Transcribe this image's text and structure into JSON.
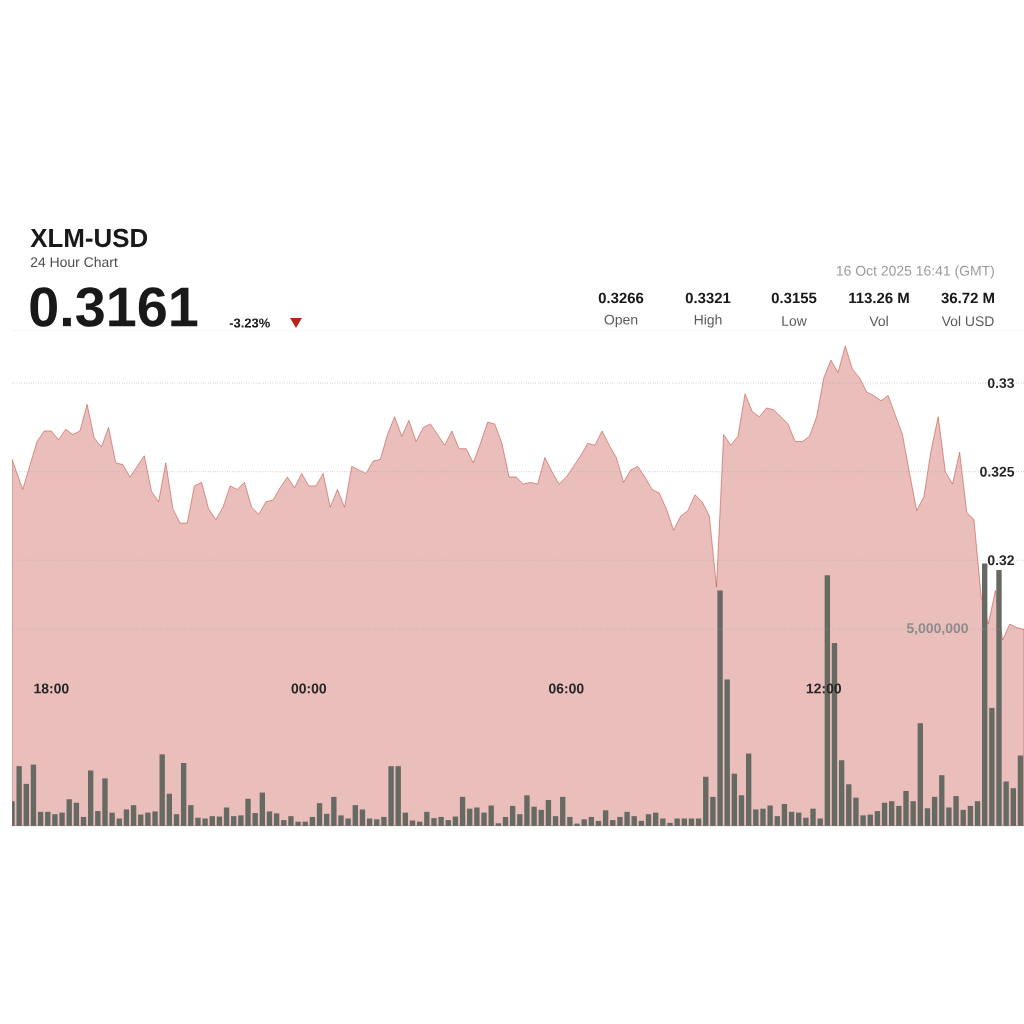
{
  "chart_data": {
    "type": "area",
    "title": "XLM-USD",
    "subtitle": "24 Hour Chart",
    "annotations": [
      "0.3161",
      "-3.23%",
      "0.3266",
      "Open",
      "0.3321",
      "High",
      "0.3155",
      "Low",
      "113.26 M",
      "Vol",
      "36.72 M",
      "Vol USD",
      "16 Oct 2025 16:41 (GMT)"
    ],
    "xlim": [
      "2025-10-15T17:05",
      "2025-10-16T16:40"
    ],
    "xticks": [
      {
        "value": "2025-10-15T18:00",
        "label": "18:00"
      },
      {
        "value": "2025-10-16T00:00",
        "label": "00:00"
      },
      {
        "value": "2025-10-16T06:00",
        "label": "06:00"
      },
      {
        "value": "2025-10-16T12:00",
        "label": "12:00"
      }
    ],
    "ylim": [
      0.305,
      0.333
    ],
    "yticks": [
      0.32,
      0.325,
      0.33
    ],
    "y2lim": [
      0,
      12600000
    ],
    "y2ticks": [
      {
        "value": 0,
        "label": null
      },
      {
        "value": 5000000,
        "label": "5,000,000"
      }
    ],
    "grid": "y",
    "series": [
      {
        "color": "#b5261c",
        "x": [
          "2025-10-15T17:05",
          "2025-10-15T17:20",
          "2025-10-15T17:40",
          "2025-10-15T17:50",
          "2025-10-15T18:00",
          "2025-10-15T18:10",
          "2025-10-15T18:20",
          "2025-10-15T18:30",
          "2025-10-15T18:40",
          "2025-10-15T18:50",
          "2025-10-15T19:00",
          "2025-10-15T19:10",
          "2025-10-15T19:20",
          "2025-10-15T19:30",
          "2025-10-15T19:40",
          "2025-10-15T19:50",
          "2025-10-15T20:10",
          "2025-10-15T20:20",
          "2025-10-15T20:30",
          "2025-10-15T20:40",
          "2025-10-15T20:50",
          "2025-10-15T21:00",
          "2025-10-15T21:10",
          "2025-10-15T21:20",
          "2025-10-15T21:30",
          "2025-10-15T21:40",
          "2025-10-15T21:50",
          "2025-10-15T22:00",
          "2025-10-15T22:10",
          "2025-10-15T22:20",
          "2025-10-15T22:30",
          "2025-10-15T22:40",
          "2025-10-15T22:50",
          "2025-10-15T23:00",
          "2025-10-15T23:10",
          "2025-10-15T23:20",
          "2025-10-15T23:30",
          "2025-10-15T23:40",
          "2025-10-15T23:50",
          "2025-10-16T00:00",
          "2025-10-16T00:10",
          "2025-10-16T00:20",
          "2025-10-16T00:30",
          "2025-10-16T00:40",
          "2025-10-16T00:50",
          "2025-10-16T01:00",
          "2025-10-16T01:20",
          "2025-10-16T01:30",
          "2025-10-16T01:40",
          "2025-10-16T01:50",
          "2025-10-16T02:00",
          "2025-10-16T02:10",
          "2025-10-16T02:20",
          "2025-10-16T02:30",
          "2025-10-16T02:40",
          "2025-10-16T02:50",
          "2025-10-16T03:00",
          "2025-10-16T03:10",
          "2025-10-16T03:20",
          "2025-10-16T03:30",
          "2025-10-16T03:40",
          "2025-10-16T03:50",
          "2025-10-16T04:00",
          "2025-10-16T04:10",
          "2025-10-16T04:20",
          "2025-10-16T04:30",
          "2025-10-16T04:40",
          "2025-10-16T04:50",
          "2025-10-16T05:00",
          "2025-10-16T05:10",
          "2025-10-16T05:20",
          "2025-10-16T05:30",
          "2025-10-16T05:40",
          "2025-10-16T05:50",
          "2025-10-16T06:00",
          "2025-10-16T06:10",
          "2025-10-16T06:20",
          "2025-10-16T06:30",
          "2025-10-16T06:40",
          "2025-10-16T06:50",
          "2025-10-16T07:00",
          "2025-10-16T07:10",
          "2025-10-16T07:20",
          "2025-10-16T07:30",
          "2025-10-16T07:40",
          "2025-10-16T07:50",
          "2025-10-16T08:00",
          "2025-10-16T08:10",
          "2025-10-16T08:20",
          "2025-10-16T08:30",
          "2025-10-16T08:40",
          "2025-10-16T08:50",
          "2025-10-16T09:00",
          "2025-10-16T09:10",
          "2025-10-16T09:20",
          "2025-10-16T09:30",
          "2025-10-16T09:40",
          "2025-10-16T09:50",
          "2025-10-16T10:00",
          "2025-10-16T10:10",
          "2025-10-16T10:20",
          "2025-10-16T10:30",
          "2025-10-16T10:40",
          "2025-10-16T10:50",
          "2025-10-16T11:00",
          "2025-10-16T11:10",
          "2025-10-16T11:20",
          "2025-10-16T11:30",
          "2025-10-16T11:40",
          "2025-10-16T11:50",
          "2025-10-16T12:00",
          "2025-10-16T12:10",
          "2025-10-16T12:20",
          "2025-10-16T12:30",
          "2025-10-16T12:40",
          "2025-10-16T12:50",
          "2025-10-16T13:00",
          "2025-10-16T13:10",
          "2025-10-16T13:20",
          "2025-10-16T13:30",
          "2025-10-16T13:40",
          "2025-10-16T13:50",
          "2025-10-16T14:00",
          "2025-10-16T14:10",
          "2025-10-16T14:20",
          "2025-10-16T14:30",
          "2025-10-16T14:40",
          "2025-10-16T14:50",
          "2025-10-16T15:00",
          "2025-10-16T15:10",
          "2025-10-16T15:20",
          "2025-10-16T15:30",
          "2025-10-16T15:40",
          "2025-10-16T15:50",
          "2025-10-16T16:00",
          "2025-10-16T16:10",
          "2025-10-16T16:20",
          "2025-10-16T16:30",
          "2025-10-16T16:40"
        ],
        "values": [
          0.3257,
          0.324,
          0.3267,
          0.3273,
          0.3273,
          0.3268,
          0.3274,
          0.3271,
          0.3273,
          0.3288,
          0.3269,
          0.3264,
          0.3275,
          0.3255,
          0.3254,
          0.3247,
          0.3259,
          0.3239,
          0.3233,
          0.3255,
          0.3229,
          0.3221,
          0.3221,
          0.3242,
          0.3244,
          0.3229,
          0.3223,
          0.323,
          0.3242,
          0.324,
          0.3244,
          0.323,
          0.3226,
          0.3233,
          0.3234,
          0.3241,
          0.3247,
          0.3241,
          0.3249,
          0.3242,
          0.3242,
          0.3249,
          0.323,
          0.324,
          0.323,
          0.3253,
          0.3249,
          0.3256,
          0.3257,
          0.3271,
          0.3281,
          0.327,
          0.3279,
          0.3267,
          0.3275,
          0.3277,
          0.3271,
          0.3265,
          0.3273,
          0.3263,
          0.3263,
          0.3255,
          0.3266,
          0.3278,
          0.3277,
          0.3266,
          0.3247,
          0.3247,
          0.3243,
          0.3244,
          0.3243,
          0.3258,
          0.325,
          0.3243,
          0.3247,
          0.3253,
          0.3259,
          0.3266,
          0.3265,
          0.3273,
          0.3265,
          0.3258,
          0.3244,
          0.3251,
          0.3253,
          0.3247,
          0.324,
          0.3238,
          0.3229,
          0.3217,
          0.3225,
          0.3228,
          0.3237,
          0.3233,
          0.3225,
          0.3185,
          0.3271,
          0.3265,
          0.327,
          0.3294,
          0.3284,
          0.3281,
          0.3286,
          0.3285,
          0.3281,
          0.3277,
          0.3267,
          0.3267,
          0.327,
          0.3281,
          0.3303,
          0.3313,
          0.3306,
          0.3321,
          0.3308,
          0.3303,
          0.3295,
          0.3293,
          0.329,
          0.3293,
          0.3282,
          0.3271,
          0.3249,
          0.3228,
          0.3236,
          0.3262,
          0.3281,
          0.325,
          0.3243,
          0.3261,
          0.3227,
          0.3223,
          0.318,
          0.3164,
          0.3183,
          0.3155,
          0.3164,
          0.3162,
          0.3161
        ]
      },
      {
        "type": "bar",
        "axis": "y2",
        "color": "#676a63",
        "x": [
          "2025-10-15T17:05",
          "2025-10-15T17:15",
          "2025-10-15T17:25",
          "2025-10-15T17:35",
          "2025-10-15T17:45",
          "2025-10-15T17:55",
          "2025-10-15T18:05",
          "2025-10-15T18:15",
          "2025-10-15T18:25",
          "2025-10-15T18:35",
          "2025-10-15T18:45",
          "2025-10-15T18:55",
          "2025-10-15T19:05",
          "2025-10-15T19:15",
          "2025-10-15T19:25",
          "2025-10-15T19:35",
          "2025-10-15T19:45",
          "2025-10-15T19:55",
          "2025-10-15T20:05",
          "2025-10-15T20:15",
          "2025-10-15T20:25",
          "2025-10-15T20:35",
          "2025-10-15T20:45",
          "2025-10-15T20:55",
          "2025-10-15T21:05",
          "2025-10-15T21:15",
          "2025-10-15T21:25",
          "2025-10-15T21:35",
          "2025-10-15T21:45",
          "2025-10-15T21:55",
          "2025-10-15T22:05",
          "2025-10-15T22:15",
          "2025-10-15T22:25",
          "2025-10-15T22:35",
          "2025-10-15T22:45",
          "2025-10-15T22:55",
          "2025-10-15T23:05",
          "2025-10-15T23:15",
          "2025-10-15T23:25",
          "2025-10-15T23:35",
          "2025-10-15T23:45",
          "2025-10-15T23:55",
          "2025-10-16T00:05",
          "2025-10-16T00:15",
          "2025-10-16T00:25",
          "2025-10-16T00:35",
          "2025-10-16T00:45",
          "2025-10-16T00:55",
          "2025-10-16T01:05",
          "2025-10-16T01:15",
          "2025-10-16T01:25",
          "2025-10-16T01:35",
          "2025-10-16T01:45",
          "2025-10-16T01:55",
          "2025-10-16T02:05",
          "2025-10-16T02:15",
          "2025-10-16T02:25",
          "2025-10-16T02:35",
          "2025-10-16T02:45",
          "2025-10-16T02:55",
          "2025-10-16T03:05",
          "2025-10-16T03:15",
          "2025-10-16T03:25",
          "2025-10-16T03:35",
          "2025-10-16T03:45",
          "2025-10-16T03:55",
          "2025-10-16T04:05",
          "2025-10-16T04:15",
          "2025-10-16T04:25",
          "2025-10-16T04:35",
          "2025-10-16T04:45",
          "2025-10-16T04:55",
          "2025-10-16T05:05",
          "2025-10-16T05:15",
          "2025-10-16T05:25",
          "2025-10-16T05:35",
          "2025-10-16T05:45",
          "2025-10-16T05:55",
          "2025-10-16T06:05",
          "2025-10-16T06:15",
          "2025-10-16T06:25",
          "2025-10-16T06:35",
          "2025-10-16T06:45",
          "2025-10-16T06:55",
          "2025-10-16T07:05",
          "2025-10-16T07:15",
          "2025-10-16T07:25",
          "2025-10-16T07:35",
          "2025-10-16T07:45",
          "2025-10-16T07:55",
          "2025-10-16T08:05",
          "2025-10-16T08:15",
          "2025-10-16T08:25",
          "2025-10-16T08:35",
          "2025-10-16T08:45",
          "2025-10-16T08:55",
          "2025-10-16T09:05",
          "2025-10-16T09:15",
          "2025-10-16T09:25",
          "2025-10-16T09:35",
          "2025-10-16T09:45",
          "2025-10-16T09:55",
          "2025-10-16T10:05",
          "2025-10-16T10:15",
          "2025-10-16T10:25",
          "2025-10-16T10:35",
          "2025-10-16T10:45",
          "2025-10-16T10:55",
          "2025-10-16T11:05",
          "2025-10-16T11:15",
          "2025-10-16T11:25",
          "2025-10-16T11:35",
          "2025-10-16T11:45",
          "2025-10-16T11:55",
          "2025-10-16T12:05",
          "2025-10-16T12:15",
          "2025-10-16T12:25",
          "2025-10-16T12:35",
          "2025-10-16T12:45",
          "2025-10-16T12:55",
          "2025-10-16T13:05",
          "2025-10-16T13:15",
          "2025-10-16T13:25",
          "2025-10-16T13:35",
          "2025-10-16T13:45",
          "2025-10-16T13:55",
          "2025-10-16T14:05",
          "2025-10-16T14:15",
          "2025-10-16T14:25",
          "2025-10-16T14:35",
          "2025-10-16T14:45",
          "2025-10-16T14:55",
          "2025-10-16T15:05",
          "2025-10-16T15:15",
          "2025-10-16T15:25",
          "2025-10-16T15:35",
          "2025-10-16T15:45",
          "2025-10-16T15:55",
          "2025-10-16T16:05",
          "2025-10-16T16:15",
          "2025-10-16T16:25",
          "2025-10-16T16:35"
        ],
        "values": [
          630000,
          1520000,
          1070000,
          1560000,
          360000,
          360000,
          300000,
          340000,
          680000,
          590000,
          230000,
          1410000,
          380000,
          1210000,
          340000,
          190000,
          420000,
          530000,
          290000,
          340000,
          370000,
          1820000,
          820000,
          300000,
          1600000,
          530000,
          210000,
          190000,
          250000,
          240000,
          470000,
          250000,
          270000,
          690000,
          330000,
          850000,
          370000,
          320000,
          150000,
          250000,
          110000,
          110000,
          230000,
          580000,
          310000,
          740000,
          270000,
          190000,
          530000,
          420000,
          190000,
          170000,
          230000,
          1520000,
          1520000,
          340000,
          140000,
          110000,
          360000,
          200000,
          230000,
          150000,
          240000,
          740000,
          440000,
          470000,
          340000,
          520000,
          70000,
          230000,
          510000,
          300000,
          780000,
          490000,
          410000,
          660000,
          250000,
          740000,
          230000,
          60000,
          170000,
          230000,
          130000,
          400000,
          150000,
          230000,
          360000,
          250000,
          130000,
          300000,
          340000,
          190000,
          80000,
          190000,
          190000,
          190000,
          190000,
          1250000,
          740000,
          5980000,
          3720000,
          1330000,
          780000,
          1840000,
          420000,
          440000,
          520000,
          250000,
          560000,
          360000,
          340000,
          210000,
          440000,
          190000,
          6370000,
          4650000,
          1670000,
          1060000,
          720000,
          270000,
          290000,
          380000,
          590000,
          630000,
          510000,
          890000,
          630000,
          2610000,
          450000,
          740000,
          1290000,
          470000,
          760000,
          410000,
          510000,
          630000,
          6670000,
          3000000,
          6500000,
          1130000,
          960000,
          1790000
        ]
      }
    ]
  }
}
